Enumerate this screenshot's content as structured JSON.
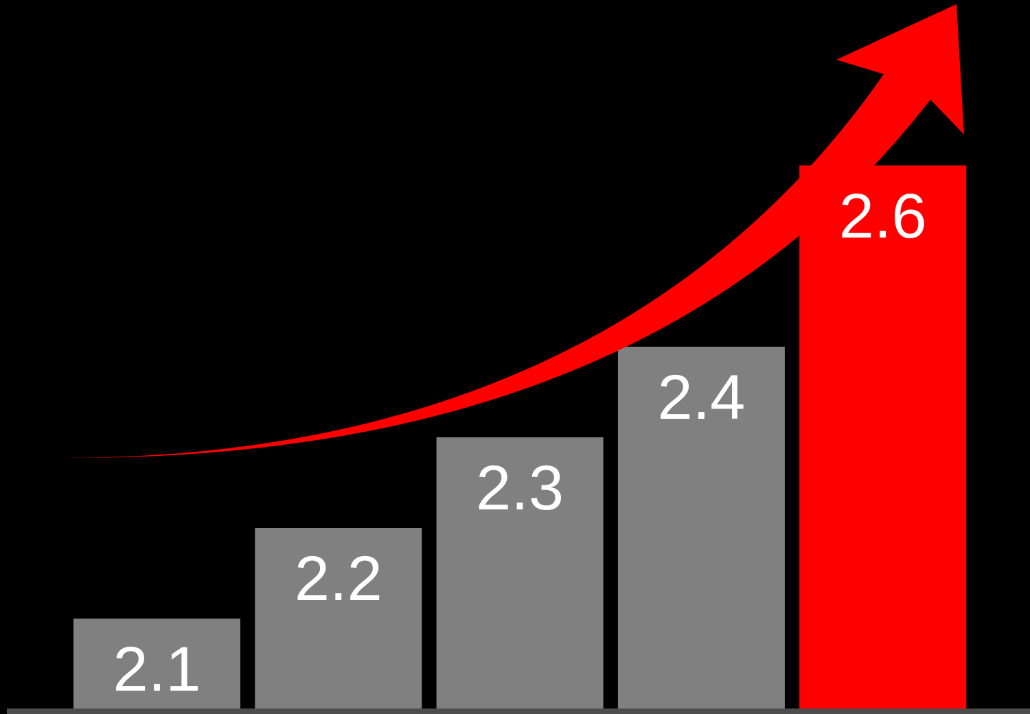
{
  "chart_data": {
    "type": "bar",
    "title": "",
    "xlabel": "",
    "ylabel": "",
    "categories": [
      "",
      "",
      "",
      "",
      ""
    ],
    "values": [
      2.1,
      2.2,
      2.3,
      2.4,
      2.6
    ],
    "labels": [
      "2.1",
      "2.2",
      "2.3",
      "2.4",
      "2.6"
    ],
    "highlight_index": 4,
    "grid": false,
    "legend": "none",
    "trend_arrow": true
  },
  "colors": {
    "background": "#000000",
    "bar": "#808080",
    "highlight": "#ff0000",
    "label": "#ffffff",
    "baseline": "#4d4d4d",
    "arrow": "#ff0000"
  }
}
